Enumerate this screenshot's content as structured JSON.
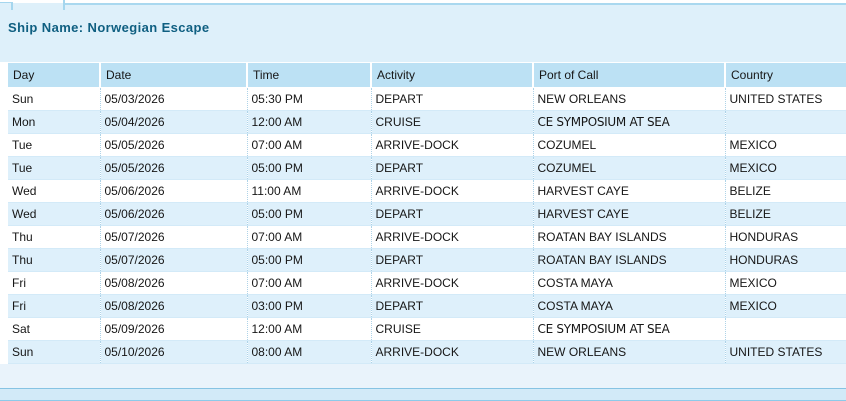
{
  "page": {
    "title": "Ship Name: Norwegian Escape"
  },
  "itinerary": {
    "columns": [
      {
        "key": "day",
        "label": "Day"
      },
      {
        "key": "date",
        "label": "Date"
      },
      {
        "key": "time",
        "label": "Time"
      },
      {
        "key": "activity",
        "label": "Activity"
      },
      {
        "key": "port",
        "label": "Port of Call"
      },
      {
        "key": "country",
        "label": "Country"
      }
    ],
    "rows": [
      {
        "day": "Sun",
        "date": "05/03/2026",
        "time": "05:30 PM",
        "activity": "DEPART",
        "port": "NEW ORLEANS",
        "country": "UNITED STATES",
        "special": false
      },
      {
        "day": "Mon",
        "date": "05/04/2026",
        "time": "12:00 AM",
        "activity": "CRUISE",
        "port": "CE SYMPOSIUM AT SEA",
        "country": "",
        "special": true
      },
      {
        "day": "Tue",
        "date": "05/05/2026",
        "time": "07:00 AM",
        "activity": "ARRIVE-DOCK",
        "port": "COZUMEL",
        "country": "MEXICO",
        "special": false
      },
      {
        "day": "Tue",
        "date": "05/05/2026",
        "time": "05:00 PM",
        "activity": "DEPART",
        "port": "COZUMEL",
        "country": "MEXICO",
        "special": false
      },
      {
        "day": "Wed",
        "date": "05/06/2026",
        "time": "11:00 AM",
        "activity": "ARRIVE-DOCK",
        "port": "HARVEST CAYE",
        "country": "BELIZE",
        "special": false
      },
      {
        "day": "Wed",
        "date": "05/06/2026",
        "time": "05:00 PM",
        "activity": "DEPART",
        "port": "HARVEST CAYE",
        "country": "BELIZE",
        "special": false
      },
      {
        "day": "Thu",
        "date": "05/07/2026",
        "time": "07:00 AM",
        "activity": "ARRIVE-DOCK",
        "port": "ROATAN BAY ISLANDS",
        "country": "HONDURAS",
        "special": false
      },
      {
        "day": "Thu",
        "date": "05/07/2026",
        "time": "05:00 PM",
        "activity": "DEPART",
        "port": "ROATAN BAY ISLANDS",
        "country": "HONDURAS",
        "special": false
      },
      {
        "day": "Fri",
        "date": "05/08/2026",
        "time": "07:00 AM",
        "activity": "ARRIVE-DOCK",
        "port": "COSTA MAYA",
        "country": "MEXICO",
        "special": false
      },
      {
        "day": "Fri",
        "date": "05/08/2026",
        "time": "03:00 PM",
        "activity": "DEPART",
        "port": "COSTA MAYA",
        "country": "MEXICO",
        "special": false
      },
      {
        "day": "Sat",
        "date": "05/09/2026",
        "time": "12:00 AM",
        "activity": "CRUISE",
        "port": "CE SYMPOSIUM AT SEA",
        "country": "",
        "special": true
      },
      {
        "day": "Sun",
        "date": "05/10/2026",
        "time": "08:00 AM",
        "activity": "ARRIVE-DOCK",
        "port": "NEW ORLEANS",
        "country": "UNITED STATES",
        "special": false
      }
    ]
  },
  "colors": {
    "page_background": "#def0fa",
    "header_row_background": "#bce1f4",
    "alt_row_background": "#def0fb",
    "title_text": "#0f5f81",
    "cell_text": "#161616",
    "row_border": "#d3eaf8",
    "footer_band_background": "#d2eaf8",
    "accent_line": "#a5d6ee"
  }
}
